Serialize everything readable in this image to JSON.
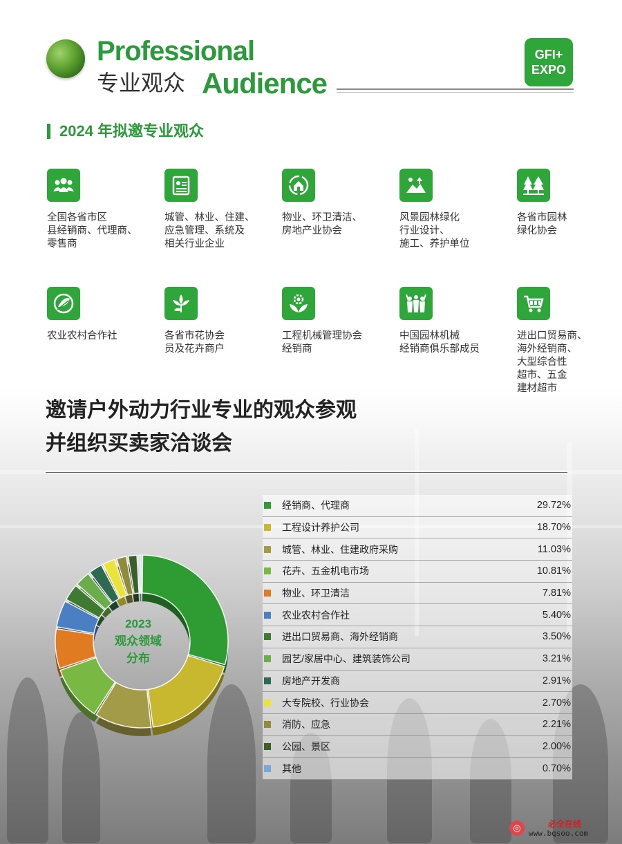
{
  "header": {
    "title_en_line1": "Professional",
    "title_cn": "专业观众",
    "title_en_line2": "Audience",
    "logo_line1": "GFI+",
    "logo_line2": "EXPO"
  },
  "section_title": "2024 年拟邀专业观众",
  "audiences": [
    {
      "icon": "people-group-icon",
      "text": "全国各省市区\n县经销商、代理商、\n零售商"
    },
    {
      "icon": "id-card-icon",
      "text": "城管、林业、住建、\n应急管理、系统及\n相关行业企业"
    },
    {
      "icon": "house-recycle-icon",
      "text": "物业、环卫清洁、\n房地产业协会"
    },
    {
      "icon": "landscape-garden-icon",
      "text": "风景园林绿化\n行业设计、\n施工、养护单位"
    },
    {
      "icon": "pine-trees-icon",
      "text": "各省市园林\n绿化协会"
    },
    {
      "icon": "wheat-leaf-icon",
      "text": "农业农村合作社"
    },
    {
      "icon": "flower-plant-icon",
      "text": "各省市花协会\n员及花卉商户"
    },
    {
      "icon": "gear-leaf-icon",
      "text": "工程机械管理协会\n经销商"
    },
    {
      "icon": "cheering-crowd-icon",
      "text": "中国园林机械\n经销商俱乐部成员"
    },
    {
      "icon": "shopping-cart-icon",
      "text": "进出口贸易商、\n海外经销商、\n大型综合性\n超市、五金\n建材超市"
    }
  ],
  "invite": {
    "line1": "邀请户外动力行业专业的观众参观",
    "line2": "并组织买卖家洽谈会"
  },
  "chart_data": {
    "type": "pie",
    "variant": "donut",
    "center_label": [
      "2023",
      "观众领域",
      "分布"
    ],
    "legend_position": "right",
    "slices": [
      {
        "label": "经销商、代理商",
        "value": 29.72,
        "display": "29.72%",
        "color": "#2e9b33"
      },
      {
        "label": "工程设计养护公司",
        "value": 18.7,
        "display": "18.70%",
        "color": "#c8b830"
      },
      {
        "label": "城管、林业、住建政府采购",
        "value": 11.03,
        "display": "11.03%",
        "color": "#a39b48"
      },
      {
        "label": "花卉、五金机电市场",
        "value": 10.81,
        "display": "10.81%",
        "color": "#78b843"
      },
      {
        "label": "物业、环卫清洁",
        "value": 7.81,
        "display": "7.81%",
        "color": "#e07b22"
      },
      {
        "label": "农业农村合作社",
        "value": 5.4,
        "display": "5.40%",
        "color": "#4a7fc4"
      },
      {
        "label": "进出口贸易商、海外经销商",
        "value": 3.5,
        "display": "3.50%",
        "color": "#3f7a32"
      },
      {
        "label": "园艺/家居中心、建筑装饰公司",
        "value": 3.21,
        "display": "3.21%",
        "color": "#6aad4a"
      },
      {
        "label": "房地产开发商",
        "value": 2.91,
        "display": "2.91%",
        "color": "#2e6a52"
      },
      {
        "label": "大专院校、行业协会",
        "value": 2.7,
        "display": "2.70%",
        "color": "#e9e33a"
      },
      {
        "label": "消防、应急",
        "value": 2.21,
        "display": "2.21%",
        "color": "#8f8c3c"
      },
      {
        "label": "公园、景区",
        "value": 2.0,
        "display": "2.00%",
        "color": "#3a5f2a"
      },
      {
        "label": "其他",
        "value": 0.7,
        "display": "0.70%",
        "color": "#7aa7d8"
      }
    ]
  },
  "watermark": {
    "cn": "必全在线",
    "url": "www.bqsoo.com"
  }
}
